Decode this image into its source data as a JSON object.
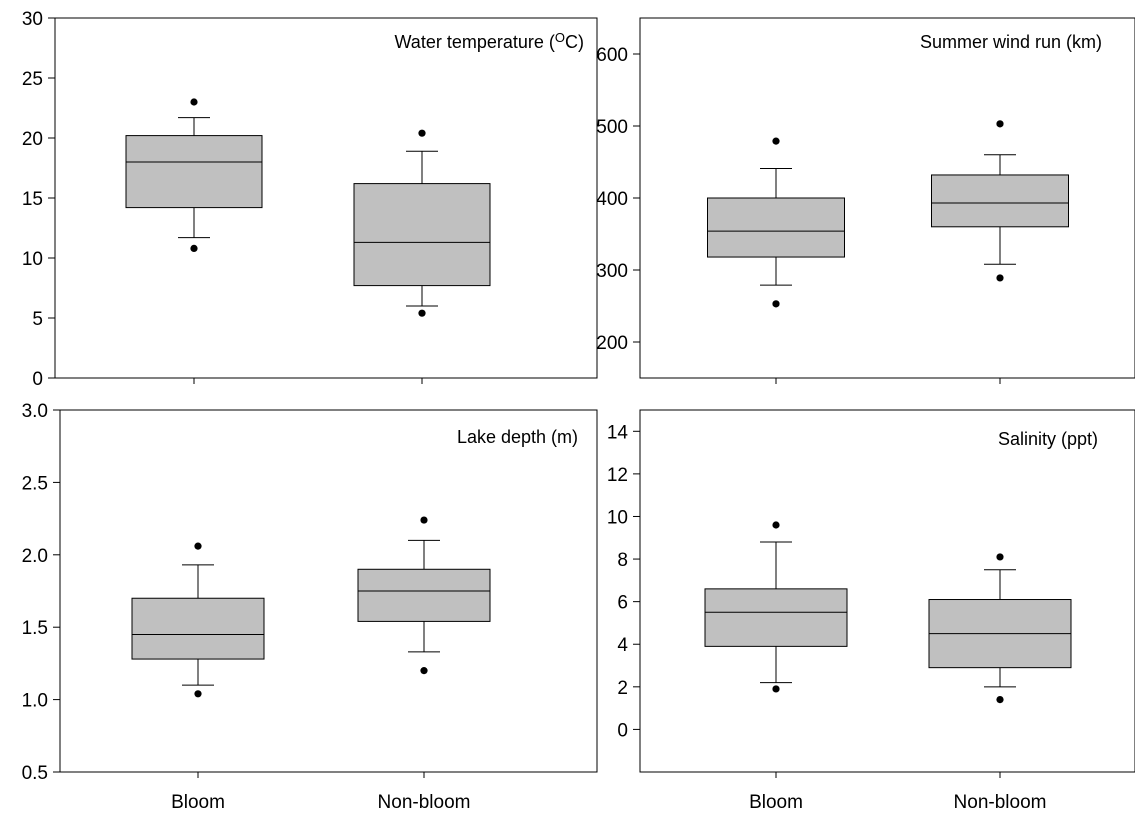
{
  "chart_data": [
    {
      "type": "box",
      "title": "Water temperature (",
      "title_sup": "O",
      "title_end": "C)",
      "categories": [
        "Bloom",
        "Non-bloom"
      ],
      "show_x_labels": false,
      "ylim": [
        0,
        30
      ],
      "yticks": [
        "0",
        "5",
        "10",
        "15",
        "20",
        "25",
        "30"
      ],
      "boxes": [
        {
          "category": "Bloom",
          "min_outlier": 10.8,
          "whisker_low": 11.7,
          "q1": 14.2,
          "median": 18.0,
          "q3": 20.2,
          "whisker_high": 21.7,
          "max_outlier": 23.0
        },
        {
          "category": "Non-bloom",
          "min_outlier": 5.4,
          "whisker_low": 6.0,
          "q1": 7.7,
          "median": 11.3,
          "q3": 16.2,
          "whisker_high": 18.9,
          "max_outlier": 20.4
        }
      ]
    },
    {
      "type": "box",
      "title": "Summer wind run (km)",
      "categories": [
        "Bloom",
        "Non-bloom"
      ],
      "show_x_labels": false,
      "ylim": [
        150,
        650
      ],
      "yticks": [
        "200",
        "300",
        "400",
        "500",
        "600"
      ],
      "boxes": [
        {
          "category": "Bloom",
          "min_outlier": 253,
          "whisker_low": 279,
          "q1": 318,
          "median": 354,
          "q3": 400,
          "whisker_high": 441,
          "max_outlier": 479
        },
        {
          "category": "Non-bloom",
          "min_outlier": 289,
          "whisker_low": 308,
          "q1": 360,
          "median": 393,
          "q3": 432,
          "whisker_high": 460,
          "max_outlier": 503
        }
      ]
    },
    {
      "type": "box",
      "title": "Lake depth (m)",
      "categories": [
        "Bloom",
        "Non-bloom"
      ],
      "show_x_labels": true,
      "ylim": [
        0.5,
        3.0
      ],
      "yticks": [
        "0.5",
        "1.0",
        "1.5",
        "2.0",
        "2.5",
        "3.0"
      ],
      "boxes": [
        {
          "category": "Bloom",
          "min_outlier": 1.04,
          "whisker_low": 1.1,
          "q1": 1.28,
          "median": 1.45,
          "q3": 1.7,
          "whisker_high": 1.93,
          "max_outlier": 2.06
        },
        {
          "category": "Non-bloom",
          "min_outlier": 1.2,
          "whisker_low": 1.33,
          "q1": 1.54,
          "median": 1.75,
          "q3": 1.9,
          "whisker_high": 2.1,
          "max_outlier": 2.24
        }
      ]
    },
    {
      "type": "box",
      "title": "Salinity (ppt)",
      "categories": [
        "Bloom",
        "Non-bloom"
      ],
      "show_x_labels": true,
      "ylim": [
        -2,
        15
      ],
      "yticks": [
        "0",
        "2",
        "4",
        "6",
        "8",
        "10",
        "12",
        "14"
      ],
      "boxes": [
        {
          "category": "Bloom",
          "min_outlier": 1.9,
          "whisker_low": 2.2,
          "q1": 3.9,
          "median": 5.5,
          "q3": 6.6,
          "whisker_high": 8.8,
          "max_outlier": 9.6
        },
        {
          "category": "Non-bloom",
          "min_outlier": 1.4,
          "whisker_low": 2.0,
          "q1": 2.9,
          "median": 4.5,
          "q3": 6.1,
          "whisker_high": 7.5,
          "max_outlier": 8.1
        }
      ]
    }
  ]
}
